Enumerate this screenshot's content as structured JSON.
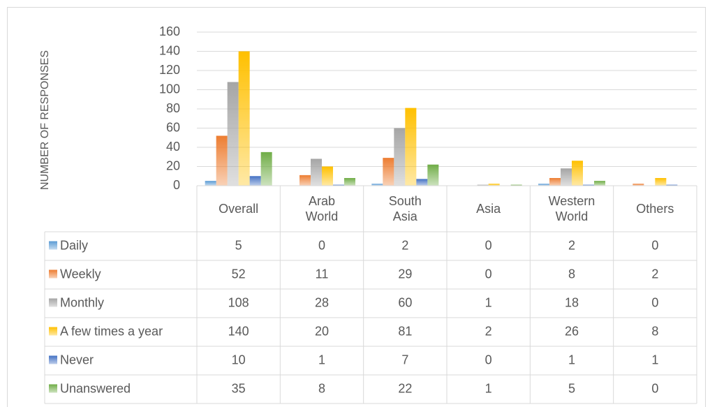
{
  "chart_data": {
    "type": "bar",
    "y_label": "NUMBER OF RESPONSES",
    "categories": [
      "Overall",
      "Arab World",
      "South Asia",
      "Asia",
      "Western World",
      "Others"
    ],
    "series": [
      {
        "name": "Daily",
        "color": "#5b9bd5",
        "values": [
          5,
          0,
          2,
          0,
          2,
          0
        ]
      },
      {
        "name": "Weekly",
        "color": "#ed7d31",
        "values": [
          52,
          11,
          29,
          0,
          8,
          2
        ]
      },
      {
        "name": "Monthly",
        "color": "#a5a5a5",
        "values": [
          108,
          28,
          60,
          1,
          18,
          0
        ]
      },
      {
        "name": "A few times a year",
        "color": "#ffc000",
        "values": [
          140,
          20,
          81,
          2,
          26,
          8
        ]
      },
      {
        "name": "Never",
        "color": "#4472c4",
        "values": [
          10,
          1,
          7,
          0,
          1,
          1
        ]
      },
      {
        "name": "Unanswered",
        "color": "#70ad47",
        "values": [
          35,
          8,
          22,
          1,
          5,
          0
        ]
      }
    ],
    "ylim": [
      0,
      160
    ],
    "yticks": [
      0,
      20,
      40,
      60,
      80,
      100,
      120,
      140,
      160
    ],
    "grid": true
  }
}
